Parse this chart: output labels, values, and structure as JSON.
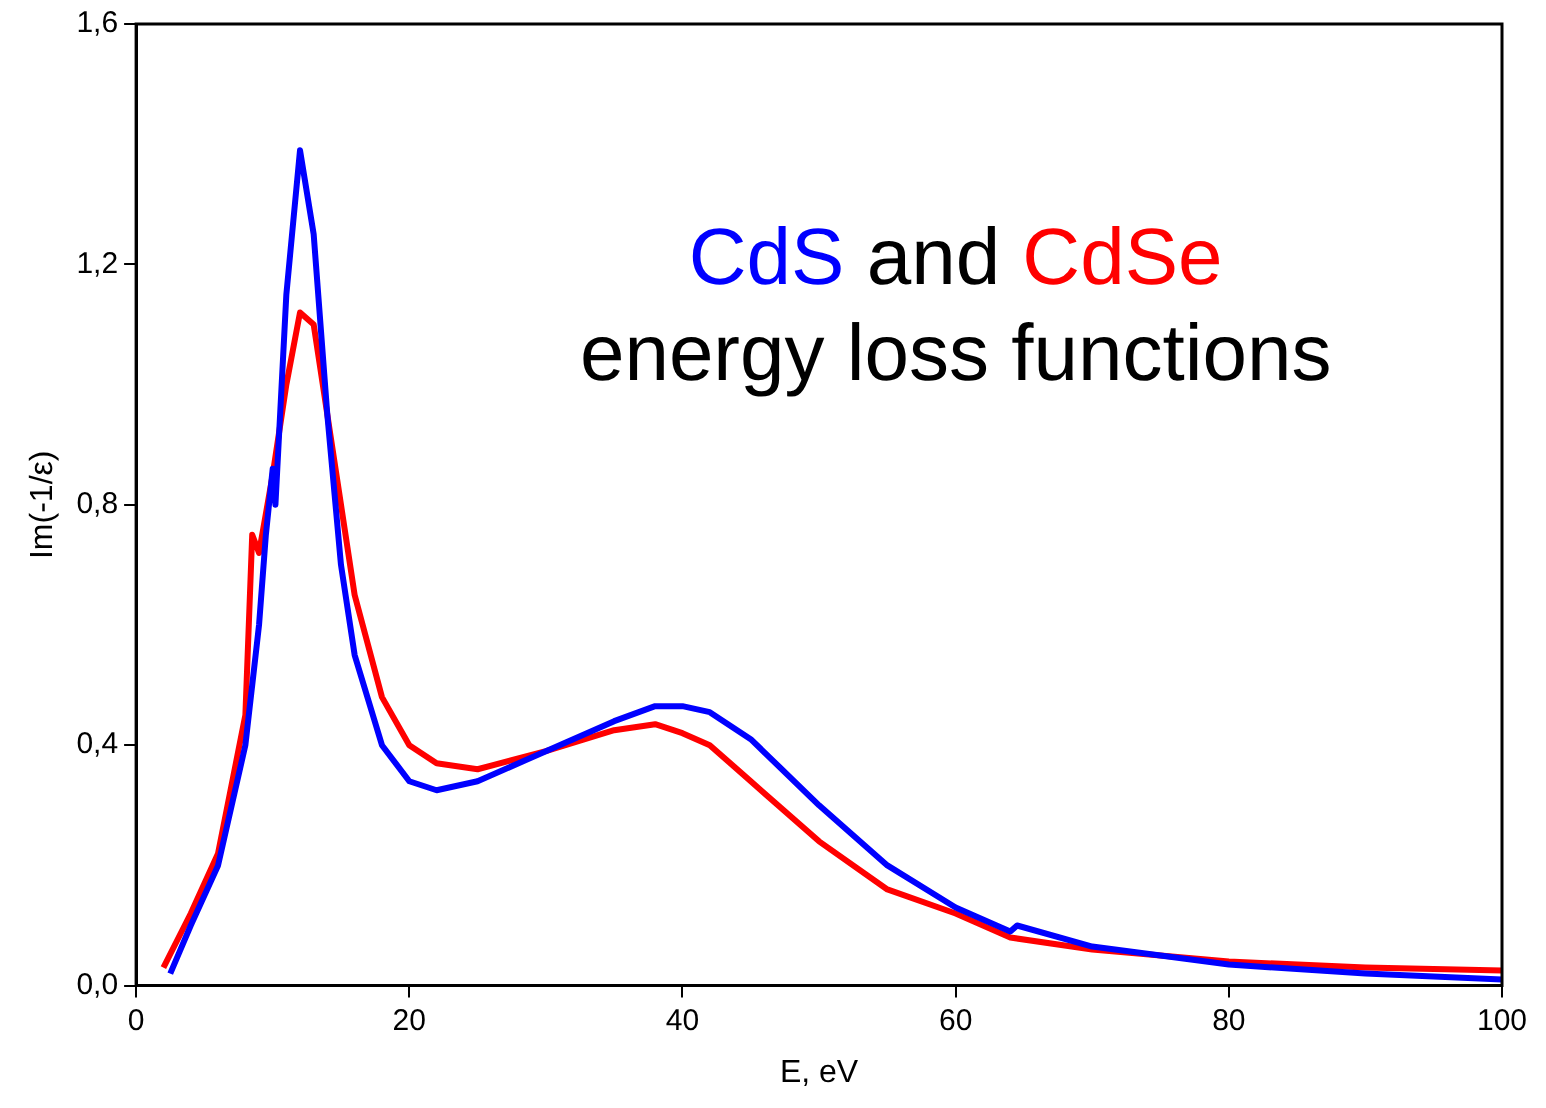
{
  "chart_data": {
    "type": "line",
    "xlabel": "E, eV",
    "ylabel": "Im(-1/ε)",
    "annotations": [
      "and",
      "energy loss functions"
    ],
    "xlim": [
      0,
      100
    ],
    "xticks": [
      0,
      20,
      40,
      60,
      80,
      100
    ],
    "ylim": [
      0,
      1.6
    ],
    "yticks": [
      {
        "value": 0,
        "label": "0,0"
      },
      {
        "value": 0.4,
        "label": "0,4"
      },
      {
        "value": 0.8,
        "label": "0,8"
      },
      {
        "value": 1.2,
        "label": "1,2"
      },
      {
        "value": 1.6,
        "label": "1,6"
      }
    ],
    "grid": false,
    "marker": "none",
    "line_style": "solid",
    "series": [
      {
        "name": "CdS",
        "color": "#0000ff",
        "x": [
          2.5,
          4,
          6,
          8,
          9,
          9.5,
          10,
          10.2,
          11,
          12,
          13,
          14,
          15,
          16,
          18,
          20,
          22,
          25,
          30,
          35,
          38,
          40,
          42,
          45,
          50,
          55,
          60,
          64,
          64.5,
          70,
          80,
          90,
          100
        ],
        "values": [
          0.02,
          0.1,
          0.2,
          0.4,
          0.6,
          0.75,
          0.86,
          0.8,
          1.15,
          1.39,
          1.25,
          0.95,
          0.7,
          0.55,
          0.4,
          0.34,
          0.325,
          0.34,
          0.39,
          0.44,
          0.465,
          0.465,
          0.455,
          0.41,
          0.3,
          0.2,
          0.13,
          0.09,
          0.1,
          0.065,
          0.035,
          0.02,
          0.01
        ]
      },
      {
        "name": "CdSe",
        "color": "#ff0000",
        "x": [
          2,
          4,
          6,
          8,
          8.5,
          9,
          10,
          11,
          12,
          13,
          14,
          15,
          16,
          18,
          20,
          22,
          25,
          30,
          35,
          38,
          40,
          42,
          45,
          50,
          55,
          60,
          64,
          70,
          80,
          90,
          100
        ],
        "values": [
          0.03,
          0.12,
          0.22,
          0.45,
          0.75,
          0.72,
          0.85,
          1.0,
          1.12,
          1.1,
          0.95,
          0.8,
          0.65,
          0.48,
          0.4,
          0.37,
          0.36,
          0.39,
          0.425,
          0.435,
          0.42,
          0.4,
          0.34,
          0.24,
          0.16,
          0.12,
          0.08,
          0.06,
          0.04,
          0.03,
          0.025
        ]
      }
    ]
  }
}
